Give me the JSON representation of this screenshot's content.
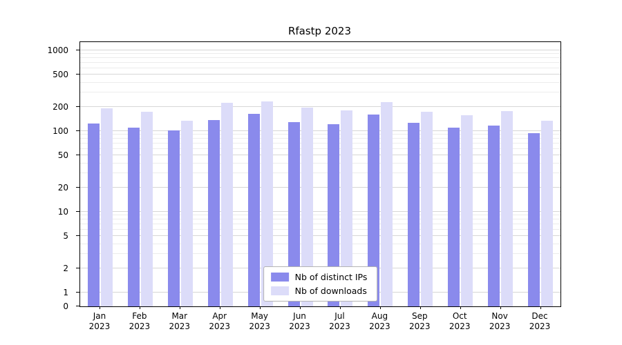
{
  "chart_data": {
    "type": "bar",
    "title": "Rfastp 2023",
    "xlabel": "",
    "ylabel": "",
    "yscale": "log",
    "yticks": [
      0,
      1,
      2,
      5,
      10,
      20,
      50,
      100,
      200,
      500,
      1000
    ],
    "ylim": [
      0,
      1200
    ],
    "grid": "horizontal",
    "legend_position": "bottom-center",
    "categories": [
      "Jan 2023",
      "Feb 2023",
      "Mar 2023",
      "Apr 2023",
      "May 2023",
      "Jun 2023",
      "Jul 2023",
      "Aug 2023",
      "Sep 2023",
      "Oct 2023",
      "Nov 2023",
      "Dec 2023"
    ],
    "series": [
      {
        "name": "Nb of distinct IPs",
        "color": "#8a8aec",
        "values": [
          125,
          110,
          102,
          138,
          165,
          130,
          122,
          162,
          127,
          110,
          118,
          95
        ]
      },
      {
        "name": "Nb of downloads",
        "color": "#dcdcf9",
        "values": [
          190,
          175,
          135,
          225,
          232,
          195,
          180,
          227,
          175,
          158,
          177,
          135
        ]
      }
    ]
  }
}
